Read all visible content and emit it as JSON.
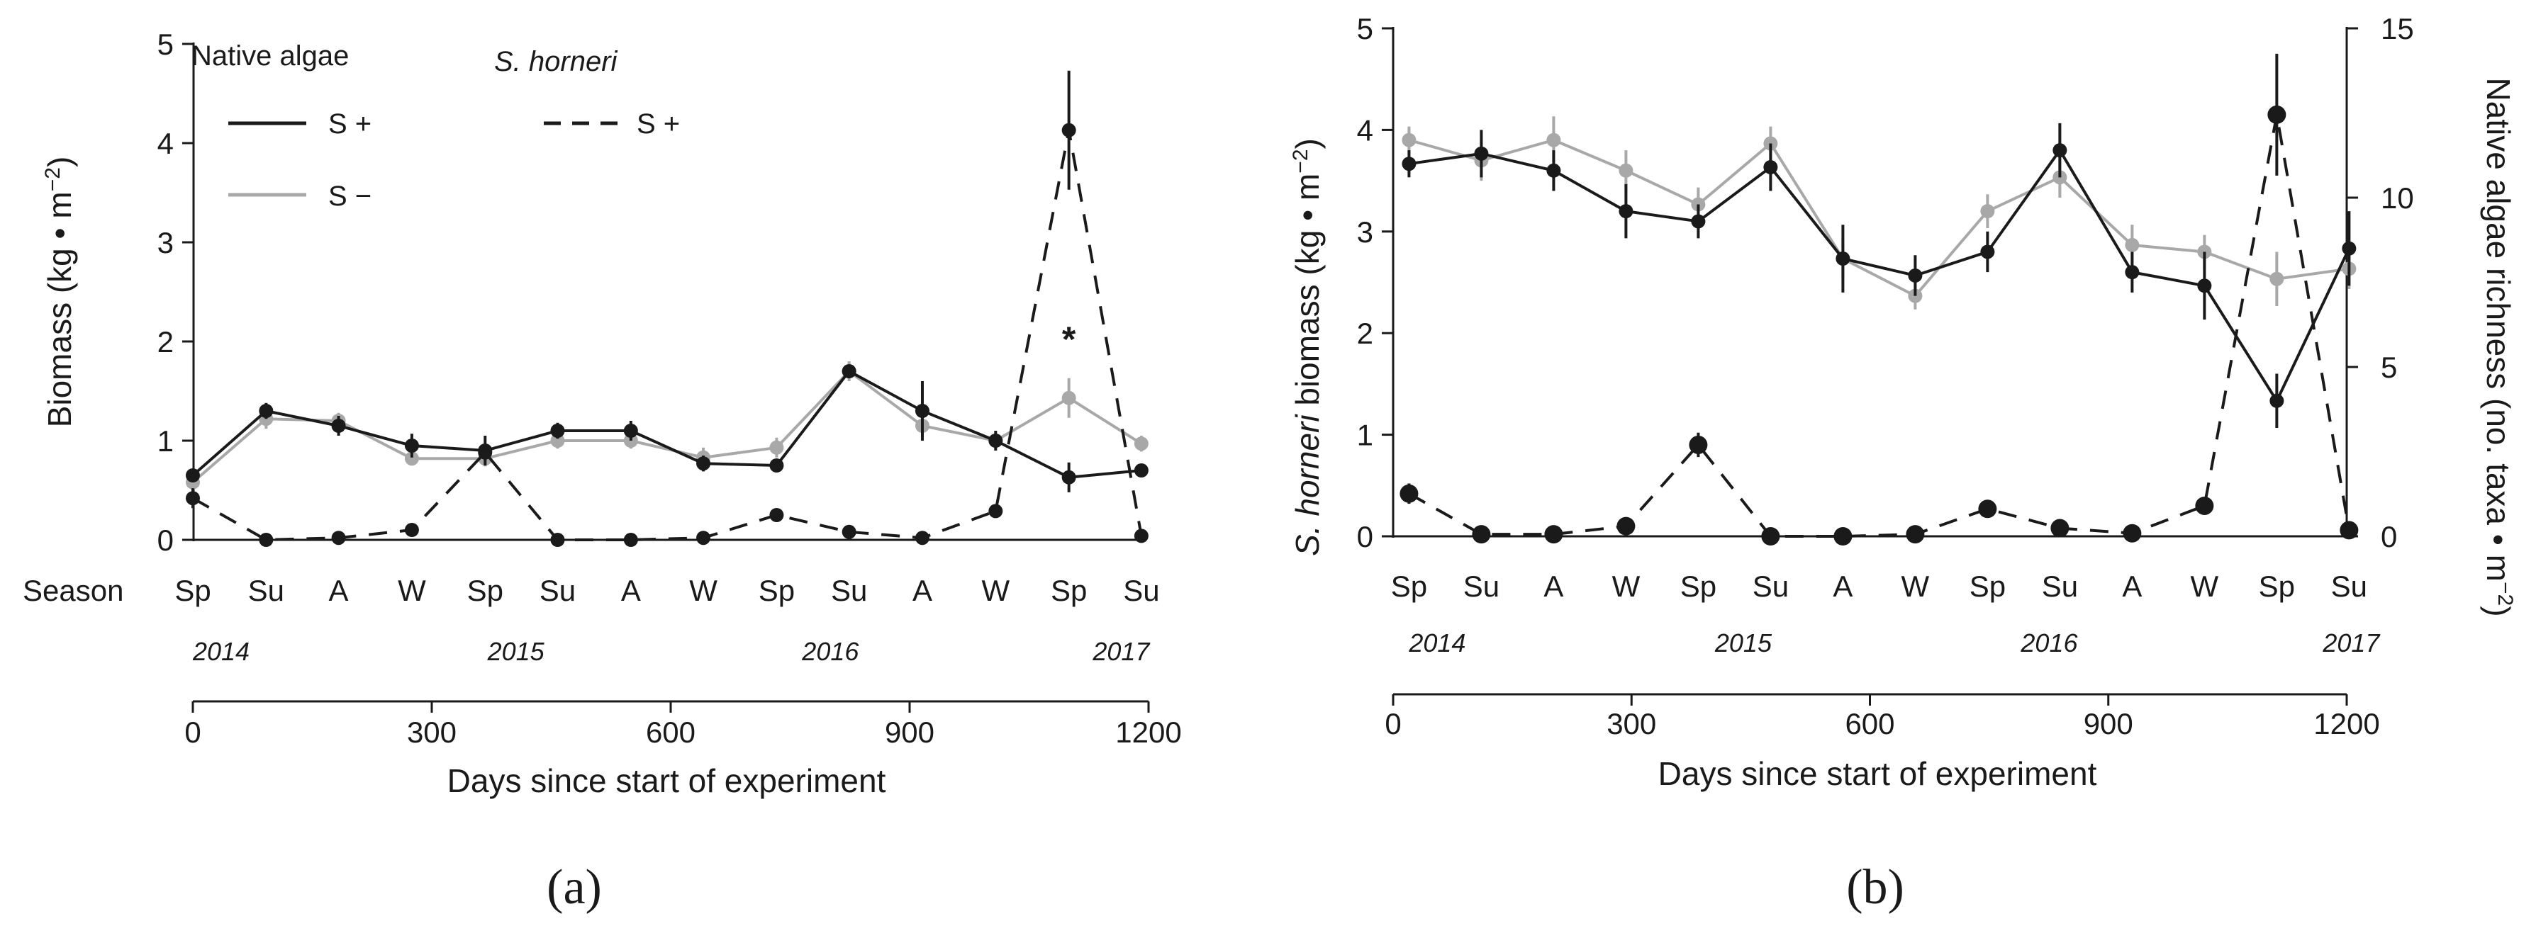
{
  "chart_data": [
    {
      "type": "line",
      "panel_label": "(a)",
      "ylabel_parts": [
        "Biomass (kg • m",
        "−2",
        ")"
      ],
      "xlabel": "Days since start of experiment",
      "ylim": [
        0,
        5
      ],
      "yticks": [
        "0",
        "1",
        "2",
        "3",
        "4",
        "5"
      ],
      "xlim": [
        0,
        1200
      ],
      "xticks": [
        "0",
        "300",
        "600",
        "900",
        "1200"
      ],
      "season_label": "Season",
      "seasons": [
        "Sp",
        "Su",
        "A",
        "W",
        "Sp",
        "Su",
        "A",
        "W",
        "Sp",
        "Su",
        "A",
        "W",
        "Sp",
        "Su"
      ],
      "x": [
        0,
        92,
        183,
        275,
        367,
        458,
        550,
        641,
        733,
        824,
        916,
        1008,
        1100,
        1191
      ],
      "years": [
        {
          "label": "2014",
          "day": 0
        },
        {
          "label": "2015",
          "day": 370
        },
        {
          "label": "2016",
          "day": 765
        },
        {
          "label": "2017",
          "day": 1130
        }
      ],
      "legend": {
        "native_title": "Native algae",
        "sh_prefix": "S.",
        "sh_title": "horneri",
        "native_splus": "S +",
        "native_sminus": "S −",
        "sh_splus": "S +"
      },
      "annotation": "*",
      "series": [
        {
          "name": "Native algae S+",
          "color": "#1a1a1a",
          "dash": "solid",
          "values": [
            0.65,
            1.3,
            1.15,
            0.95,
            0.9,
            1.1,
            1.1,
            0.77,
            0.75,
            1.7,
            1.3,
            1.0,
            0.63,
            0.7
          ],
          "errors": [
            0.05,
            0.08,
            0.1,
            0.12,
            0.15,
            0.08,
            0.1,
            0.08,
            0.05,
            0.05,
            0.3,
            0.1,
            0.15,
            0.05
          ]
        },
        {
          "name": "Native algae S−",
          "color": "#a8a8a8",
          "dash": "solid",
          "values": [
            0.58,
            1.22,
            1.2,
            0.82,
            0.82,
            1.0,
            1.0,
            0.83,
            0.93,
            1.7,
            1.15,
            1.0,
            1.43,
            0.97
          ],
          "errors": [
            0.05,
            0.1,
            0.08,
            0.05,
            0.08,
            0.08,
            0.08,
            0.1,
            0.1,
            0.1,
            0.1,
            0.08,
            0.2,
            0.08
          ]
        },
        {
          "name": "S. horneri S+",
          "color": "#1a1a1a",
          "dash": "dashed",
          "values": [
            0.42,
            0.0,
            0.02,
            0.1,
            0.88,
            0.0,
            0.0,
            0.02,
            0.25,
            0.08,
            0.02,
            0.29,
            4.13,
            0.04
          ],
          "errors": [
            0.1,
            0.0,
            0.02,
            0.02,
            0.08,
            0.0,
            0.0,
            0.02,
            0.06,
            0.02,
            0.02,
            0.03,
            0.6,
            0.02
          ]
        }
      ]
    },
    {
      "type": "line",
      "panel_label": "(b)",
      "ylabel_left_parts": [
        "S.",
        " horneri biomass (kg • m",
        "−2",
        ")"
      ],
      "ylabel_right_parts": [
        "Native algae richness (no. taxa • m",
        "−2",
        ")"
      ],
      "xlabel": "Days since start of experiment",
      "ylim_left": [
        0,
        5
      ],
      "yticks_left": [
        "0",
        "1",
        "2",
        "3",
        "4",
        "5"
      ],
      "ylim_right": [
        0,
        15
      ],
      "yticks_right": [
        "0",
        "5",
        "10",
        "15"
      ],
      "xlim": [
        0,
        1200
      ],
      "xticks": [
        "0",
        "300",
        "600",
        "900",
        "1200"
      ],
      "seasons": [
        "Sp",
        "Su",
        "A",
        "W",
        "Sp",
        "Su",
        "A",
        "W",
        "Sp",
        "Su",
        "A",
        "W",
        "Sp",
        "Su"
      ],
      "x": [
        20,
        111,
        202,
        293,
        384,
        475,
        566,
        657,
        748,
        839,
        930,
        1021,
        1112,
        1203
      ],
      "years": [
        {
          "label": "2014",
          "day": 20
        },
        {
          "label": "2015",
          "day": 405
        },
        {
          "label": "2016",
          "day": 790
        },
        {
          "label": "2017",
          "day": 1170
        }
      ],
      "series": [
        {
          "name": "Native algae richness S+",
          "axis": "right",
          "color": "#1a1a1a",
          "dash": "solid",
          "values": [
            11.0,
            11.3,
            10.8,
            9.6,
            9.3,
            10.9,
            8.2,
            7.7,
            8.4,
            11.4,
            7.8,
            7.4,
            4.0,
            8.5
          ],
          "errors": [
            0.4,
            0.7,
            0.6,
            0.8,
            0.5,
            0.7,
            1.0,
            0.6,
            0.6,
            0.8,
            0.6,
            1.0,
            0.8,
            1.1
          ]
        },
        {
          "name": "Native algae richness S−",
          "axis": "right",
          "color": "#a8a8a8",
          "dash": "solid",
          "values": [
            11.7,
            11.1,
            11.7,
            10.8,
            9.8,
            11.6,
            8.2,
            7.1,
            9.6,
            10.6,
            8.6,
            8.4,
            7.6,
            7.9
          ],
          "errors": [
            0.4,
            0.6,
            0.7,
            0.6,
            0.5,
            0.5,
            0.6,
            0.4,
            0.5,
            0.6,
            0.6,
            0.5,
            0.8,
            0.6
          ]
        },
        {
          "name": "S. horneri biomass S+",
          "axis": "left",
          "color": "#1a1a1a",
          "dash": "dashed",
          "values": [
            0.42,
            0.02,
            0.02,
            0.1,
            0.9,
            0.0,
            0.0,
            0.02,
            0.27,
            0.08,
            0.03,
            0.3,
            4.15,
            0.06
          ],
          "errors": [
            0.1,
            0.02,
            0.02,
            0.02,
            0.12,
            0.0,
            0.0,
            0.02,
            0.06,
            0.02,
            0.02,
            0.03,
            0.6,
            0.03
          ]
        }
      ]
    }
  ]
}
